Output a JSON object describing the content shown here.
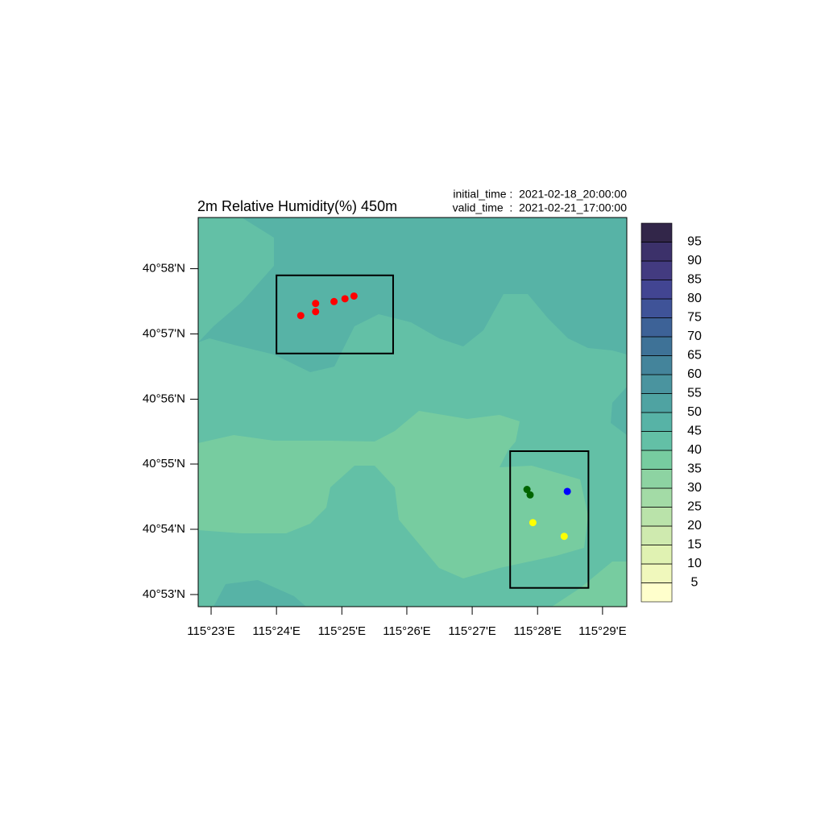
{
  "header": {
    "title": "2m Relative Humidity(%) 450m",
    "initial_time": "initial_time :  2021-02-18_20:00:00",
    "valid_time": "valid_time  :  2021-02-21_17:00:00"
  },
  "map": {
    "lonlim": [
      115.38,
      115.4895
    ],
    "latlim": [
      40.8802,
      40.9798
    ],
    "lonticks": [
      {
        "value": 115.3833,
        "label": "115°23'E"
      },
      {
        "value": 115.4,
        "label": "115°24'E"
      },
      {
        "value": 115.4167,
        "label": "115°25'E"
      },
      {
        "value": 115.4333,
        "label": "115°26'E"
      },
      {
        "value": 115.45,
        "label": "115°27'E"
      },
      {
        "value": 115.4667,
        "label": "115°28'E"
      },
      {
        "value": 115.4833,
        "label": "115°29'E"
      }
    ],
    "latticks": [
      {
        "value": 40.8833,
        "label": "40°53'N"
      },
      {
        "value": 40.9,
        "label": "40°54'N"
      },
      {
        "value": 40.9167,
        "label": "40°55'N"
      },
      {
        "value": 40.9333,
        "label": "40°56'N"
      },
      {
        "value": 40.95,
        "label": "40°57'N"
      },
      {
        "value": 40.9667,
        "label": "40°58'N"
      }
    ],
    "boxes": [
      {
        "lon": [
          115.4,
          115.4298
        ],
        "lat": [
          40.945,
          40.965
        ]
      },
      {
        "lon": [
          115.4597,
          115.4797
        ],
        "lat": [
          40.885,
          40.92
        ]
      }
    ],
    "points": [
      {
        "lon": 115.4062,
        "lat": 40.9547,
        "color": "#ff0000"
      },
      {
        "lon": 115.41,
        "lat": 40.9557,
        "color": "#ff0000"
      },
      {
        "lon": 115.41,
        "lat": 40.9578,
        "color": "#ff0000"
      },
      {
        "lon": 115.4147,
        "lat": 40.9583,
        "color": "#ff0000"
      },
      {
        "lon": 115.4175,
        "lat": 40.959,
        "color": "#ff0000"
      },
      {
        "lon": 115.4198,
        "lat": 40.9597,
        "color": "#ff0000"
      },
      {
        "lon": 115.464,
        "lat": 40.9102,
        "color": "#006400"
      },
      {
        "lon": 115.4648,
        "lat": 40.9088,
        "color": "#006400"
      },
      {
        "lon": 115.4743,
        "lat": 40.9097,
        "color": "#0000ff"
      },
      {
        "lon": 115.4655,
        "lat": 40.9017,
        "color": "#ffff00"
      },
      {
        "lon": 115.4735,
        "lat": 40.8982,
        "color": "#ffff00"
      }
    ]
  },
  "colorbar": {
    "levels": [
      5,
      10,
      15,
      20,
      25,
      30,
      35,
      40,
      45,
      50,
      55,
      60,
      65,
      70,
      75,
      80,
      85,
      90,
      95
    ],
    "colors": [
      "#ffffcc",
      "#f0f8bc",
      "#e0f2b2",
      "#cfeaaf",
      "#bae3aa",
      "#a3dba6",
      "#8dd3a2",
      "#77cca0",
      "#63c0a6",
      "#57b3a6",
      "#4fa3a2",
      "#4a949f",
      "#44849b",
      "#3e7297",
      "#3d6297",
      "#3f5398",
      "#424592",
      "#433b80",
      "#3c316a",
      "#322649"
    ]
  }
}
